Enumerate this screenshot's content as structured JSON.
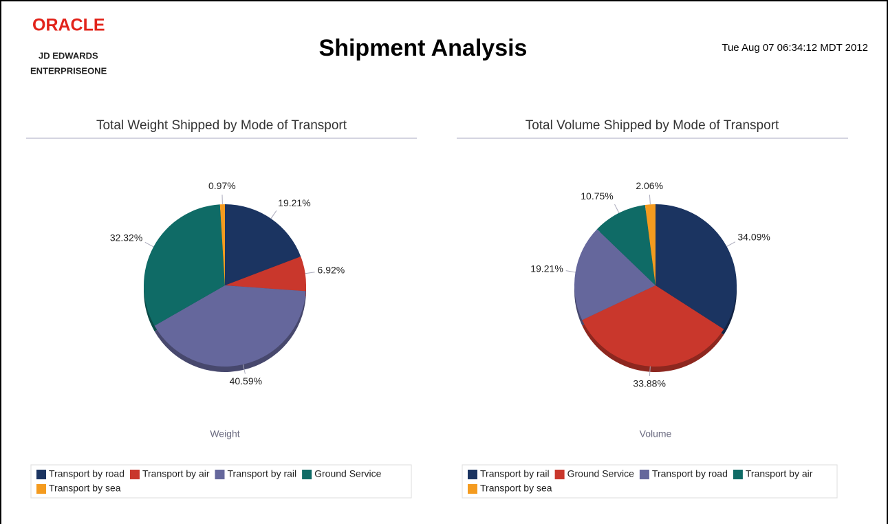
{
  "header": {
    "logo": "ORACLE",
    "line1": "JD EDWARDS",
    "line2": "ENTERPRISEONE",
    "title": "Shipment Analysis",
    "timestamp": "Tue Aug 07 06:34:12 MDT 2012"
  },
  "chart_data": [
    {
      "type": "pie",
      "title": "Total Weight Shipped by Mode of Transport",
      "label": "Weight",
      "categories": [
        "Transport by road",
        "Transport by air",
        "Transport by rail",
        "Ground Service",
        "Transport by sea"
      ],
      "values": [
        19.21,
        6.92,
        40.59,
        32.32,
        0.97
      ],
      "value_labels": [
        "19.21%",
        "6.92%",
        "40.59%",
        "32.32%",
        "0.97%"
      ],
      "colors": [
        "#1b3461",
        "#c9372c",
        "#65679c",
        "#0f6b66",
        "#f49b1f"
      ]
    },
    {
      "type": "pie",
      "title": "Total Volume Shipped by Mode of Transport",
      "label": "Volume",
      "categories": [
        "Transport by rail",
        "Ground Service",
        "Transport by road",
        "Transport by air",
        "Transport by sea"
      ],
      "values": [
        34.09,
        33.88,
        19.21,
        10.75,
        2.06
      ],
      "value_labels": [
        "34.09%",
        "33.88%",
        "19.21%",
        "10.75%",
        "2.06%"
      ],
      "colors": [
        "#1b3461",
        "#c9372c",
        "#65679c",
        "#0f6b66",
        "#f49b1f"
      ]
    }
  ]
}
